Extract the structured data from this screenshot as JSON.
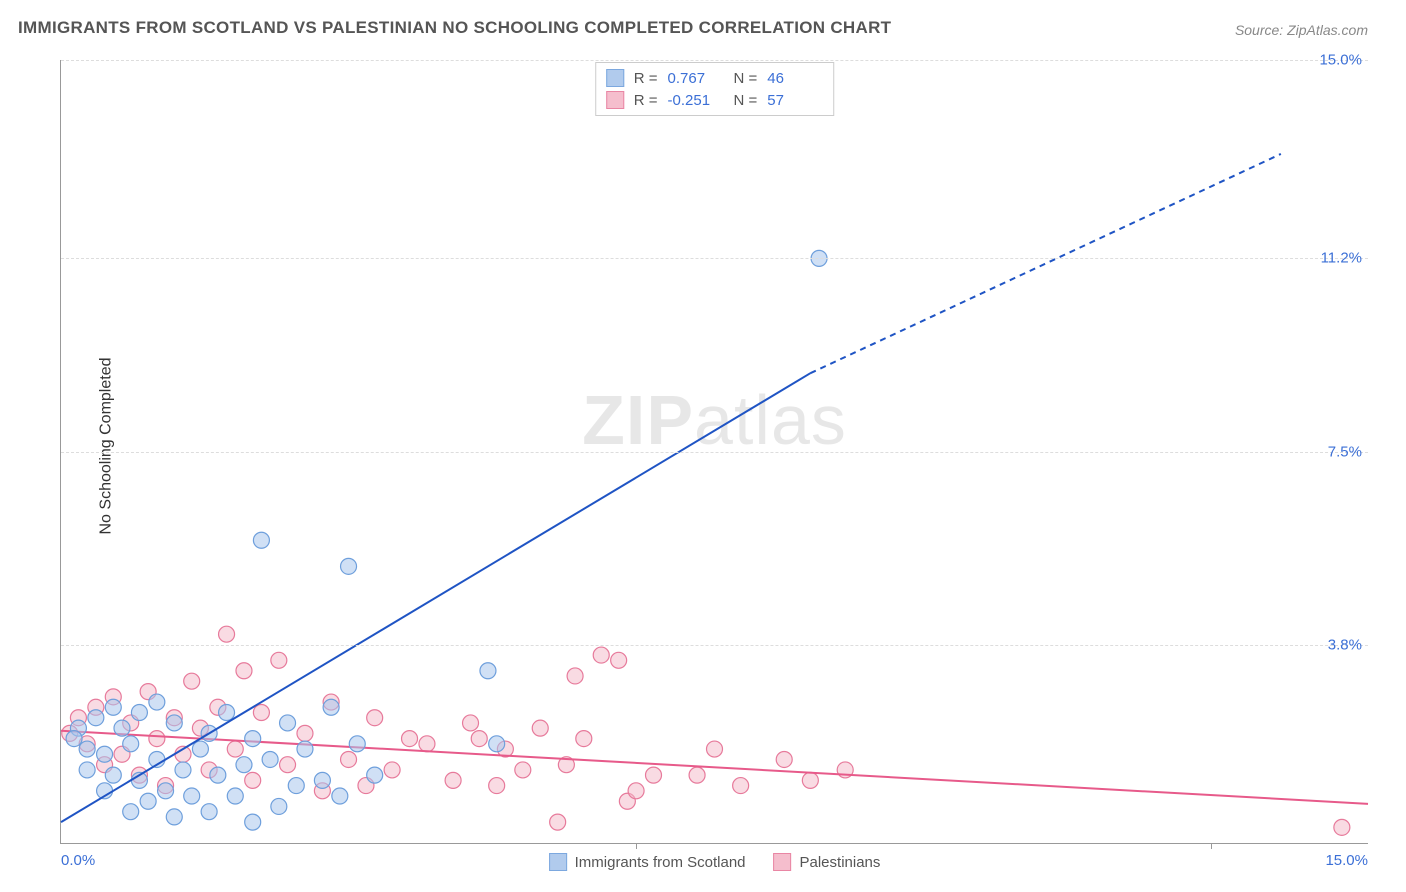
{
  "title": "IMMIGRANTS FROM SCOTLAND VS PALESTINIAN NO SCHOOLING COMPLETED CORRELATION CHART",
  "source": "Source: ZipAtlas.com",
  "ylabel": "No Schooling Completed",
  "watermark_bold": "ZIP",
  "watermark_rest": "atlas",
  "chart": {
    "type": "scatter_with_trendlines",
    "xlim": [
      0,
      15
    ],
    "ylim": [
      0,
      15
    ],
    "y_ticks": [
      {
        "v": 3.8,
        "label": "3.8%"
      },
      {
        "v": 7.5,
        "label": "7.5%"
      },
      {
        "v": 11.2,
        "label": "11.2%"
      },
      {
        "v": 15.0,
        "label": "15.0%"
      }
    ],
    "x_tickmarks": [
      6.6,
      13.2
    ],
    "x_left_label": "0.0%",
    "x_right_label": "15.0%",
    "grid_color": "#dddddd",
    "background_color": "#ffffff",
    "series": [
      {
        "name": "Immigrants from Scotland",
        "color_fill": "#a9c6ec",
        "color_stroke": "#6e9fdc",
        "fill_opacity": 0.55,
        "marker_r": 8,
        "trend": {
          "color": "#1f54c4",
          "width": 2,
          "x1": 0,
          "y1": 0.4,
          "x_solid_end": 8.6,
          "y_solid_end": 9.0,
          "x2": 14.0,
          "y2": 13.2,
          "dash": "6,5"
        },
        "R": "0.767",
        "N": "46",
        "points": [
          [
            0.2,
            2.2
          ],
          [
            0.3,
            1.8
          ],
          [
            0.3,
            1.4
          ],
          [
            0.4,
            2.4
          ],
          [
            0.5,
            1.0
          ],
          [
            0.5,
            1.7
          ],
          [
            0.6,
            2.6
          ],
          [
            0.6,
            1.3
          ],
          [
            0.7,
            2.2
          ],
          [
            0.8,
            0.6
          ],
          [
            0.8,
            1.9
          ],
          [
            0.9,
            1.2
          ],
          [
            0.9,
            2.5
          ],
          [
            1.0,
            0.8
          ],
          [
            1.1,
            1.6
          ],
          [
            1.1,
            2.7
          ],
          [
            1.2,
            1.0
          ],
          [
            1.3,
            0.5
          ],
          [
            1.3,
            2.3
          ],
          [
            1.4,
            1.4
          ],
          [
            1.5,
            0.9
          ],
          [
            1.6,
            1.8
          ],
          [
            1.7,
            2.1
          ],
          [
            1.7,
            0.6
          ],
          [
            1.8,
            1.3
          ],
          [
            1.9,
            2.5
          ],
          [
            2.0,
            0.9
          ],
          [
            2.1,
            1.5
          ],
          [
            2.2,
            0.4
          ],
          [
            2.2,
            2.0
          ],
          [
            2.4,
            1.6
          ],
          [
            2.5,
            0.7
          ],
          [
            2.6,
            2.3
          ],
          [
            2.7,
            1.1
          ],
          [
            2.8,
            1.8
          ],
          [
            3.0,
            1.2
          ],
          [
            3.1,
            2.6
          ],
          [
            3.2,
            0.9
          ],
          [
            3.4,
            1.9
          ],
          [
            3.6,
            1.3
          ],
          [
            2.3,
            5.8
          ],
          [
            3.3,
            5.3
          ],
          [
            4.9,
            3.3
          ],
          [
            5.0,
            1.9
          ],
          [
            8.7,
            11.2
          ],
          [
            0.15,
            2.0
          ]
        ]
      },
      {
        "name": "Palestinians",
        "color_fill": "#f4b8c8",
        "color_stroke": "#e77a9b",
        "fill_opacity": 0.5,
        "marker_r": 8,
        "trend": {
          "color": "#e75a8a",
          "width": 2,
          "x1": 0,
          "y1": 2.15,
          "x_solid_end": 15,
          "y_solid_end": 0.75,
          "x2": 15,
          "y2": 0.75,
          "dash": ""
        },
        "R": "-0.251",
        "N": "57",
        "points": [
          [
            0.2,
            2.4
          ],
          [
            0.3,
            1.9
          ],
          [
            0.4,
            2.6
          ],
          [
            0.5,
            1.5
          ],
          [
            0.6,
            2.8
          ],
          [
            0.7,
            1.7
          ],
          [
            0.8,
            2.3
          ],
          [
            0.9,
            1.3
          ],
          [
            1.0,
            2.9
          ],
          [
            1.1,
            2.0
          ],
          [
            1.2,
            1.1
          ],
          [
            1.3,
            2.4
          ],
          [
            1.4,
            1.7
          ],
          [
            1.5,
            3.1
          ],
          [
            1.6,
            2.2
          ],
          [
            1.7,
            1.4
          ],
          [
            1.8,
            2.6
          ],
          [
            1.9,
            4.0
          ],
          [
            2.0,
            1.8
          ],
          [
            2.1,
            3.3
          ],
          [
            2.2,
            1.2
          ],
          [
            2.3,
            2.5
          ],
          [
            2.5,
            3.5
          ],
          [
            2.6,
            1.5
          ],
          [
            2.8,
            2.1
          ],
          [
            3.0,
            1.0
          ],
          [
            3.1,
            2.7
          ],
          [
            3.3,
            1.6
          ],
          [
            3.5,
            1.1
          ],
          [
            3.6,
            2.4
          ],
          [
            3.8,
            1.4
          ],
          [
            4.0,
            2.0
          ],
          [
            4.2,
            1.9
          ],
          [
            4.5,
            1.2
          ],
          [
            4.7,
            2.3
          ],
          [
            4.8,
            2.0
          ],
          [
            5.0,
            1.1
          ],
          [
            5.1,
            1.8
          ],
          [
            5.3,
            1.4
          ],
          [
            5.5,
            2.2
          ],
          [
            5.7,
            0.4
          ],
          [
            5.8,
            1.5
          ],
          [
            6.0,
            2.0
          ],
          [
            6.2,
            3.6
          ],
          [
            6.4,
            3.5
          ],
          [
            6.5,
            0.8
          ],
          [
            6.8,
            1.3
          ],
          [
            5.9,
            3.2
          ],
          [
            6.6,
            1.0
          ],
          [
            7.3,
            1.3
          ],
          [
            7.5,
            1.8
          ],
          [
            7.8,
            1.1
          ],
          [
            8.3,
            1.6
          ],
          [
            8.6,
            1.2
          ],
          [
            9.0,
            1.4
          ],
          [
            14.7,
            0.3
          ],
          [
            0.1,
            2.1
          ]
        ]
      }
    ],
    "legend_top_labels": {
      "R": "R =",
      "N": "N ="
    },
    "legend_bottom": true
  }
}
